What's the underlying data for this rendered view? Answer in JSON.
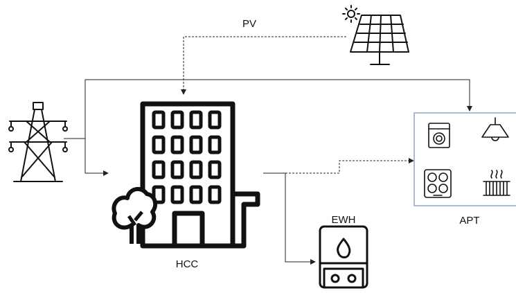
{
  "nodes": [
    {
      "label": "PV"
    },
    {
      "label": "HCC"
    },
    {
      "label": "EWH"
    },
    {
      "label": "APT"
    }
  ]
}
